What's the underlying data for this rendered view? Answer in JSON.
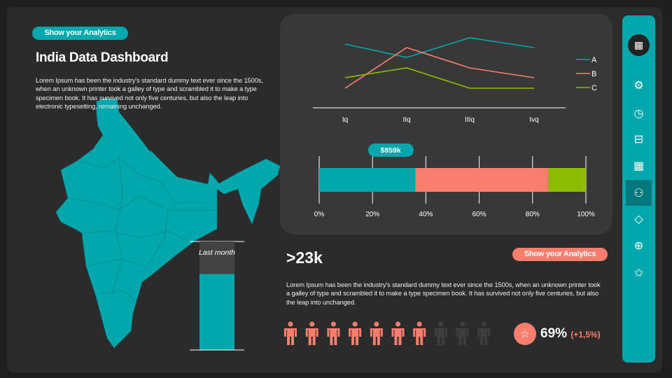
{
  "left": {
    "pill": "Show your Analytics",
    "title": "India Data Dashboard",
    "description": "Lorem Ipsum has been the industry's standard dummy text ever since the 1500s, when an unknown printer took a galley of type and scrambled it to make a type specimen book. It has survived not only five centuries, but also the leap into electronic typesetting, remaining unchanged.",
    "gauge": {
      "label": "Last month",
      "value_percent": 70
    }
  },
  "stats": {
    "big_number": ">23k",
    "pill": "Show your Analytics",
    "description": "Lorem Ipsum has been the industry's standard dummy text ever since the 1500s, when an unknown printer took a galley of type and scrambled it to make a type specimen book. It has survived not only five centuries, but also the leap into unchanged.",
    "people_total": 10,
    "people_filled": 7,
    "percent": "69%",
    "change": "(+1,5%)",
    "badge_icon": "star-icon"
  },
  "colors": {
    "teal": "#00a8ad",
    "salmon": "#fa7e6e",
    "green": "#8cbc00",
    "dark": "#3e3e3e"
  },
  "sidebar": {
    "items": [
      {
        "icon": "calendar-icon",
        "active": false,
        "highlight": true
      },
      {
        "icon": "gear-icon"
      },
      {
        "icon": "clock-icon"
      },
      {
        "icon": "briefcase-icon"
      },
      {
        "icon": "calendar-icon"
      },
      {
        "icon": "users-icon",
        "active": true
      },
      {
        "icon": "diamond-icon"
      },
      {
        "icon": "zoom-in-icon"
      },
      {
        "icon": "star-icon"
      }
    ]
  },
  "chart_data": [
    {
      "type": "line",
      "categories": [
        "Iq",
        "IIq",
        "IIIq",
        "Ivq"
      ],
      "series": [
        {
          "name": "A",
          "color": "#00a8ad",
          "values": [
            4.6,
            3.65,
            5.05,
            4.35
          ]
        },
        {
          "name": "B",
          "color": "#fa7e6e",
          "values": [
            1.45,
            4.35,
            2.9,
            2.2
          ]
        },
        {
          "name": "C",
          "color": "#8cbc00",
          "values": [
            2.2,
            2.9,
            1.45,
            1.45
          ]
        }
      ],
      "ylim": [
        0,
        5.5
      ],
      "legend": "right"
    },
    {
      "type": "bar",
      "orientation": "horizontal-stacked",
      "annotation": "$859k",
      "ticks": [
        "0%",
        "20%",
        "40%",
        "60%",
        "80%",
        "100%"
      ],
      "xlim": [
        0,
        100
      ],
      "series": [
        {
          "color": "#00a8ad",
          "value": 36
        },
        {
          "color": "#fa7e6e",
          "value": 50
        },
        {
          "color": "#8cbc00",
          "value": 14
        }
      ]
    }
  ]
}
